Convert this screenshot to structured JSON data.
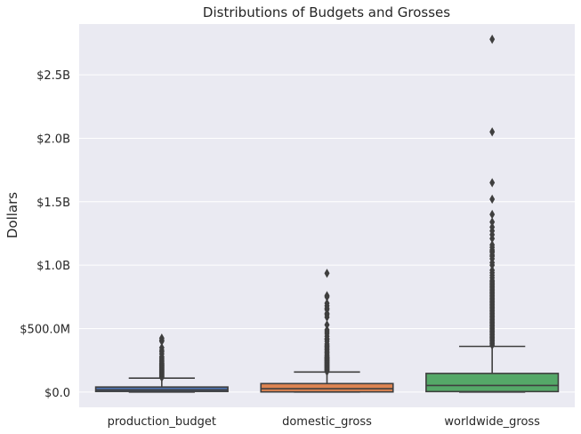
{
  "chart_data": {
    "type": "box",
    "title": "Distributions of Budgets and Grosses",
    "xlabel": "",
    "ylabel": "Dollars",
    "ylim": [
      -120000000,
      2900000000
    ],
    "yticks": [
      0,
      500000000,
      1000000000,
      1500000000,
      2000000000,
      2500000000
    ],
    "ytick_labels": [
      "$0.0",
      "$500.0M",
      "$1.0B",
      "$1.5B",
      "$2.0B",
      "$2.5B"
    ],
    "grid": true,
    "categories": [
      "production_budget",
      "domestic_gross",
      "worldwide_gross"
    ],
    "series": [
      {
        "category": "production_budget",
        "color": "#4c72b0",
        "min": 1100,
        "q1": 5000000,
        "median": 17000000,
        "q3": 40000000,
        "whisker_high": 110000000,
        "outliers": [
          115000000,
          120000000,
          125000000,
          130000000,
          135000000,
          140000000,
          145000000,
          150000000,
          155000000,
          160000000,
          165000000,
          170000000,
          175000000,
          180000000,
          185000000,
          190000000,
          195000000,
          200000000,
          205000000,
          210000000,
          215000000,
          220000000,
          225000000,
          230000000,
          240000000,
          250000000,
          258000000,
          270000000,
          280000000,
          300000000,
          317000000,
          330000000,
          350000000,
          400000000,
          410000000,
          425000000
        ]
      },
      {
        "category": "domestic_gross",
        "color": "#dd8452",
        "min": 0,
        "q1": 1400000,
        "median": 27000000,
        "q3": 67000000,
        "whisker_high": 158000000,
        "outliers": [
          162000000,
          170000000,
          175000000,
          180000000,
          185000000,
          190000000,
          195000000,
          200000000,
          205000000,
          210000000,
          215000000,
          220000000,
          225000000,
          230000000,
          235000000,
          240000000,
          245000000,
          250000000,
          255000000,
          260000000,
          265000000,
          270000000,
          275000000,
          280000000,
          290000000,
          300000000,
          310000000,
          320000000,
          330000000,
          340000000,
          350000000,
          360000000,
          370000000,
          380000000,
          400000000,
          415000000,
          420000000,
          440000000,
          460000000,
          475000000,
          490000000,
          530000000,
          590000000,
          610000000,
          620000000,
          650000000,
          660000000,
          680000000,
          700000000,
          750000000,
          760000000,
          936000000
        ]
      },
      {
        "category": "worldwide_gross",
        "color": "#55a868",
        "min": 0,
        "q1": 4000000,
        "median": 52000000,
        "q3": 147000000,
        "whisker_high": 360000000,
        "outliers": [
          370000000,
          380000000,
          390000000,
          400000000,
          410000000,
          420000000,
          430000000,
          440000000,
          450000000,
          460000000,
          470000000,
          480000000,
          490000000,
          500000000,
          510000000,
          520000000,
          530000000,
          540000000,
          550000000,
          560000000,
          570000000,
          580000000,
          590000000,
          600000000,
          610000000,
          620000000,
          630000000,
          640000000,
          650000000,
          660000000,
          670000000,
          680000000,
          690000000,
          700000000,
          710000000,
          720000000,
          730000000,
          740000000,
          750000000,
          760000000,
          770000000,
          780000000,
          790000000,
          800000000,
          810000000,
          820000000,
          830000000,
          840000000,
          850000000,
          860000000,
          870000000,
          880000000,
          900000000,
          920000000,
          940000000,
          960000000,
          1000000000,
          1020000000,
          1050000000,
          1070000000,
          1080000000,
          1100000000,
          1110000000,
          1120000000,
          1140000000,
          1160000000,
          1210000000,
          1240000000,
          1270000000,
          1300000000,
          1340000000,
          1400000000,
          1520000000,
          1650000000,
          2050000000,
          2780000000
        ]
      }
    ]
  }
}
